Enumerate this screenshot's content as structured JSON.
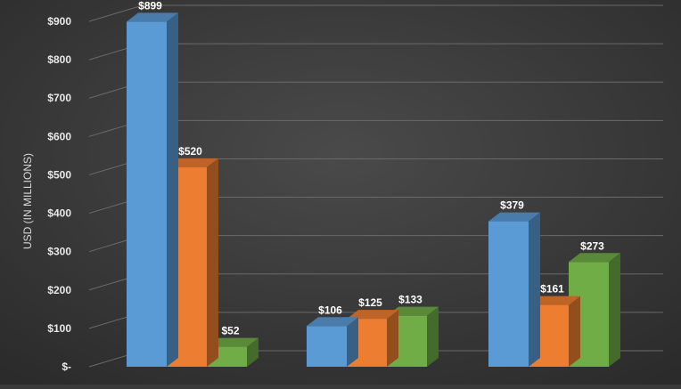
{
  "chart_data": {
    "type": "bar",
    "title": "",
    "xlabel": "",
    "ylabel": "USD (IN MILLIONS)",
    "ylim": [
      0,
      900
    ],
    "yticks": [
      0,
      100,
      200,
      300,
      400,
      500,
      600,
      700,
      800,
      900
    ],
    "ytick_labels": [
      "$-",
      "$100",
      "$200",
      "$300",
      "$400",
      "$500",
      "$600",
      "$700",
      "$800",
      "$900"
    ],
    "categories": [
      "",
      "",
      ""
    ],
    "grid": true,
    "legend": "none",
    "series": [
      {
        "values": [
          899,
          106,
          379
        ],
        "labels": [
          "$899",
          "$106",
          "$379"
        ],
        "color": "#5b9bd5"
      },
      {
        "values": [
          520,
          125,
          161
        ],
        "labels": [
          "$520",
          "$125",
          "$161"
        ],
        "color": "#ed7d31"
      },
      {
        "values": [
          52,
          133,
          273
        ],
        "labels": [
          "$52",
          "$133",
          "$273"
        ],
        "color": "#70ad47"
      }
    ]
  }
}
